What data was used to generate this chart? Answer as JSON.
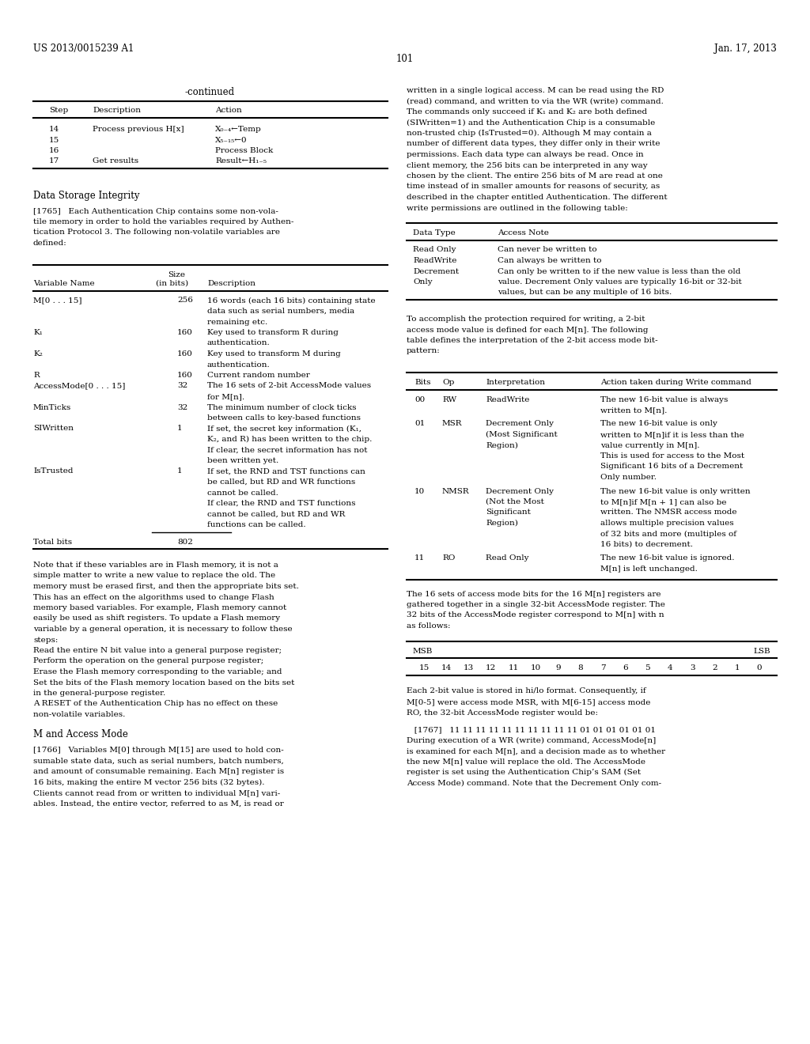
{
  "bg_color": "#ffffff",
  "header_left": "US 2013/0015239 A1",
  "header_right": "Jan. 17, 2013",
  "page_number": "101"
}
